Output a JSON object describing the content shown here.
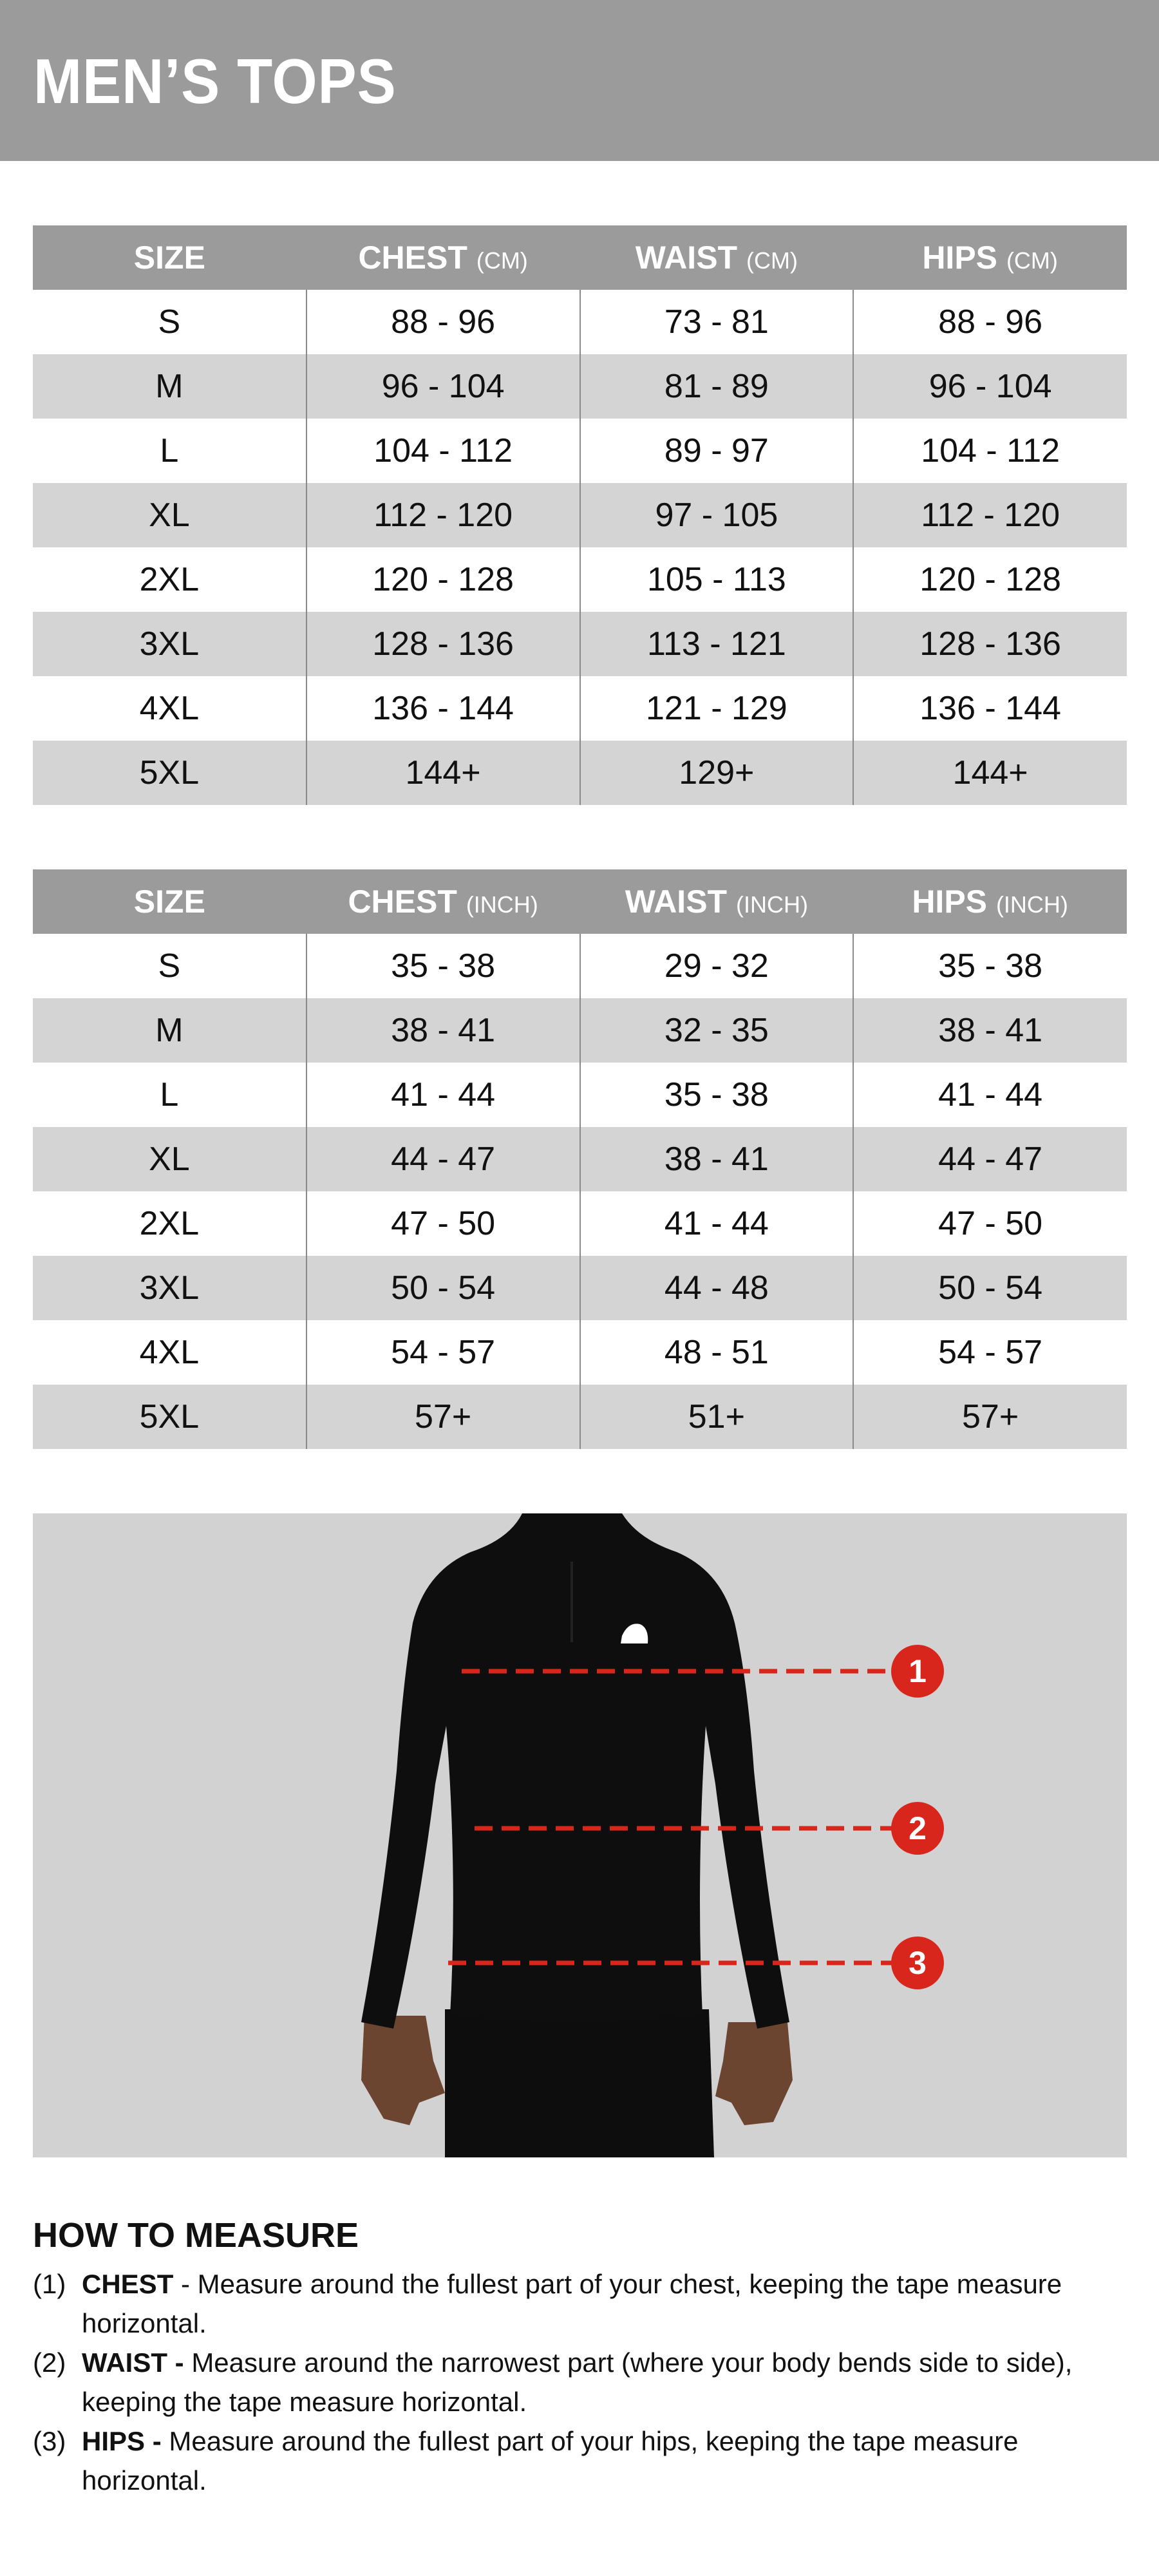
{
  "header": {
    "title": "MEN’S TOPS"
  },
  "tables": [
    {
      "columns": [
        {
          "label": "SIZE",
          "unit": ""
        },
        {
          "label": "CHEST",
          "unit": "(CM)"
        },
        {
          "label": "WAIST",
          "unit": "(CM)"
        },
        {
          "label": "HIPS",
          "unit": "(CM)"
        }
      ],
      "rows": [
        [
          "S",
          "88 - 96",
          "73 - 81",
          "88 - 96"
        ],
        [
          "M",
          "96 - 104",
          "81 - 89",
          "96 - 104"
        ],
        [
          "L",
          "104 - 112",
          "89 - 97",
          "104 - 112"
        ],
        [
          "XL",
          "112 - 120",
          "97 - 105",
          "112 - 120"
        ],
        [
          "2XL",
          "120 - 128",
          "105 - 113",
          "120 - 128"
        ],
        [
          "3XL",
          "128 - 136",
          "113 - 121",
          "128 - 136"
        ],
        [
          "4XL",
          "136 - 144",
          "121 - 129",
          "136 - 144"
        ],
        [
          "5XL",
          "144+",
          "129+",
          "144+"
        ]
      ]
    },
    {
      "columns": [
        {
          "label": "SIZE",
          "unit": ""
        },
        {
          "label": "CHEST",
          "unit": "(INCH)"
        },
        {
          "label": "WAIST",
          "unit": "(INCH)"
        },
        {
          "label": "HIPS",
          "unit": "(INCH)"
        }
      ],
      "rows": [
        [
          "S",
          "35 - 38",
          "29 - 32",
          "35 - 38"
        ],
        [
          "M",
          "38 - 41",
          "32 - 35",
          "38 - 41"
        ],
        [
          "L",
          "41 - 44",
          "35 - 38",
          "41 - 44"
        ],
        [
          "XL",
          "44 - 47",
          "38 - 41",
          "44 - 47"
        ],
        [
          "2XL",
          "47 - 50",
          "41 - 44",
          "47 - 50"
        ],
        [
          "3XL",
          "50 - 54",
          "44 - 48",
          "50 - 54"
        ],
        [
          "4XL",
          "54 - 57",
          "48 - 51",
          "54 - 57"
        ],
        [
          "5XL",
          "57+",
          "51+",
          "57+"
        ]
      ]
    }
  ],
  "figure": {
    "markers": [
      "1",
      "2",
      "3"
    ],
    "marker_color": "#d9261c"
  },
  "how_to_measure": {
    "title": "HOW TO MEASURE",
    "items": [
      {
        "num": "(1)",
        "term": "CHEST",
        "text": " - Measure around the fullest part of your chest, keeping the tape measure horizontal."
      },
      {
        "num": "(2)",
        "term": "WAIST -",
        "text": " Measure around the narrowest part (where your body bends side to side), keeping the tape measure horizontal."
      },
      {
        "num": "(3)",
        "term": "HIPS -",
        "text": " Measure around the fullest part of your hips, keeping the tape measure horizontal."
      }
    ]
  },
  "colors": {
    "header_gray": "#9b9b9b",
    "row_alt": "#d4d4d4",
    "photo_bg": "#d2d2d2",
    "marker_red": "#d9261c"
  }
}
